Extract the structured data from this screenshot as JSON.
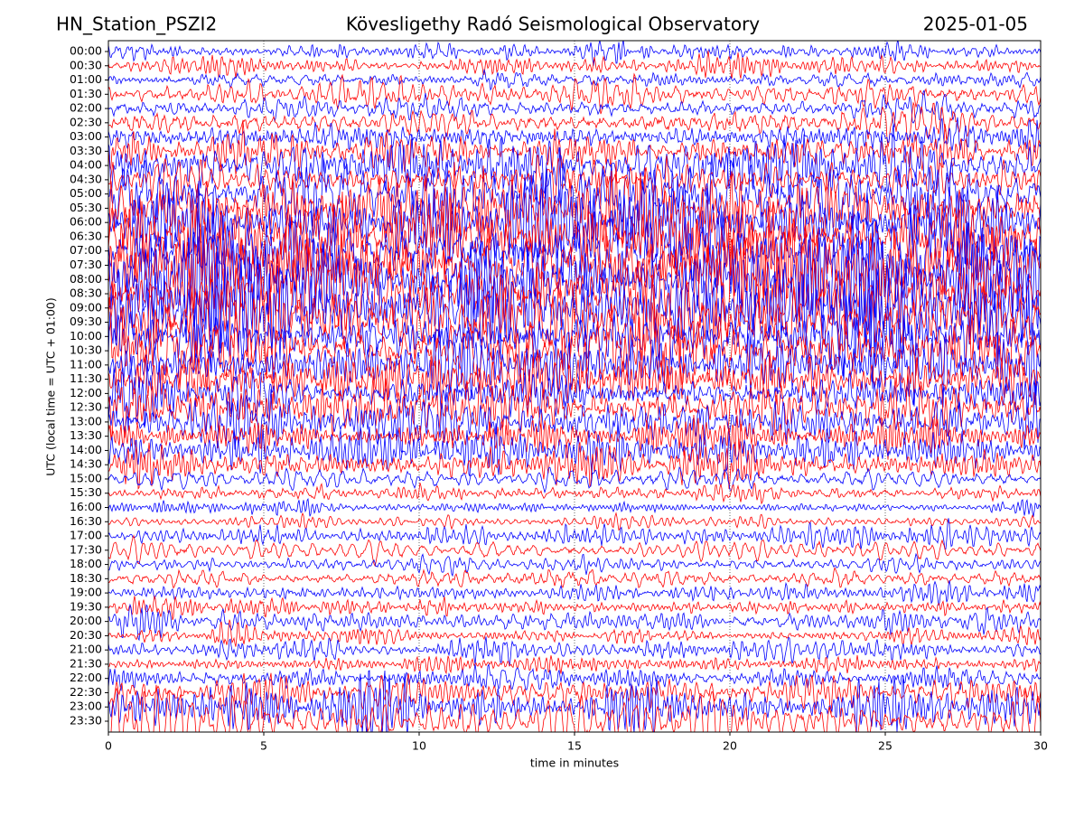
{
  "chart_data": {
    "type": "helicorder",
    "title": "Kövesligethy Radó Seismological Observatory",
    "station": "HN_Station_PSZI2",
    "date": "2025-01-05",
    "x_label": "time in minutes",
    "y_label": "UTC (local time = UTC + 01:00)",
    "categories": [
      "00:00",
      "00:30",
      "01:00",
      "01:30",
      "02:00",
      "02:30",
      "03:00",
      "03:30",
      "04:00",
      "04:30",
      "05:00",
      "05:30",
      "06:00",
      "06:30",
      "07:00",
      "07:30",
      "08:00",
      "08:30",
      "09:00",
      "09:30",
      "10:00",
      "10:30",
      "11:00",
      "11:30",
      "12:00",
      "12:30",
      "13:00",
      "13:30",
      "14:00",
      "14:30",
      "15:00",
      "15:30",
      "16:00",
      "16:30",
      "17:00",
      "17:30",
      "18:00",
      "18:30",
      "19:00",
      "19:30",
      "20:00",
      "20:30",
      "21:00",
      "21:30",
      "22:00",
      "22:30",
      "23:00",
      "23:30"
    ],
    "amplitudes": [
      0.3,
      0.4,
      0.4,
      0.6,
      0.6,
      0.7,
      0.8,
      0.9,
      1.0,
      1.0,
      1.2,
      1.4,
      1.6,
      1.8,
      2.0,
      2.2,
      2.4,
      2.4,
      2.4,
      2.2,
      2.0,
      1.6,
      1.4,
      1.3,
      1.2,
      1.2,
      1.2,
      1.0,
      0.9,
      0.8,
      0.6,
      0.4,
      0.3,
      0.3,
      0.5,
      0.5,
      0.4,
      0.4,
      0.4,
      0.4,
      0.5,
      0.4,
      0.4,
      0.4,
      0.5,
      0.8,
      0.9,
      0.8
    ],
    "colors": [
      "#0000ff",
      "#ff0000"
    ],
    "xlim": [
      0,
      30
    ],
    "xticks": [
      0,
      5,
      10,
      15,
      20,
      25,
      30
    ],
    "grid": true
  }
}
